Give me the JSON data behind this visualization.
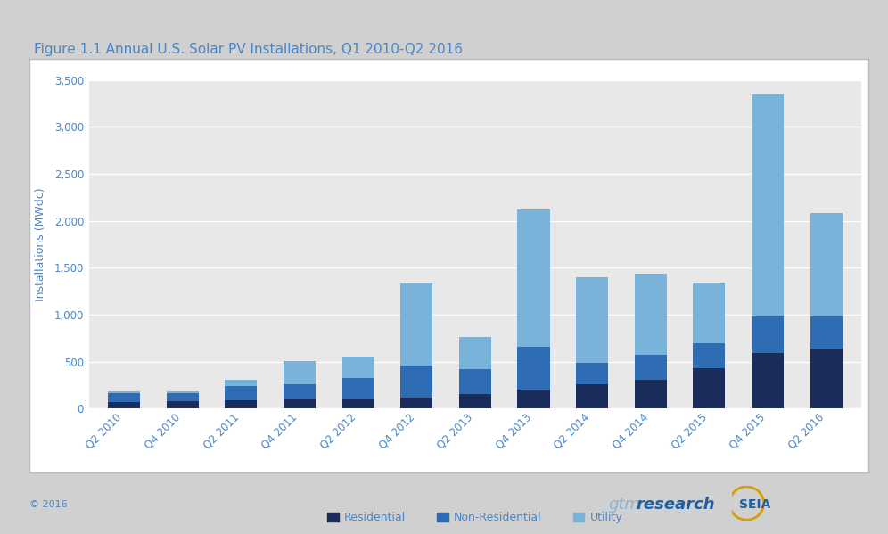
{
  "title": "Figure 1.1 Annual U.S. Solar PV Installations, Q1 2010-Q2 2016",
  "ylabel": "Installations (MWdc)",
  "categories": [
    "Q2 2010",
    "Q4 2010",
    "Q2 2011",
    "Q4 2011",
    "Q2 2012",
    "Q4 2012",
    "Q2 2013",
    "Q4 2013",
    "Q2 2014",
    "Q4 2014",
    "Q2 2015",
    "Q4 2015",
    "Q2 2016"
  ],
  "residential": [
    70,
    75,
    85,
    95,
    100,
    115,
    155,
    205,
    255,
    310,
    430,
    590,
    635
  ],
  "non_residential": [
    90,
    90,
    155,
    160,
    230,
    340,
    265,
    455,
    230,
    265,
    265,
    395,
    345
  ],
  "utility": [
    20,
    20,
    70,
    255,
    220,
    880,
    340,
    1460,
    910,
    860,
    645,
    2360,
    1100
  ],
  "color_residential": "#1a2d5a",
  "color_non_residential": "#2e6db4",
  "color_utility": "#7ab3d9",
  "plot_bg": "#e8e8e8",
  "outer_bg": "#d0d0d0",
  "frame_bg": "#ffffff",
  "ylim": [
    0,
    3500
  ],
  "yticks": [
    0,
    500,
    1000,
    1500,
    2000,
    2500,
    3000,
    3500
  ],
  "title_color": "#4a86c8",
  "tick_color": "#4a86c8",
  "legend_labels": [
    "Residential",
    "Non-Residential",
    "Utility"
  ],
  "footer_left": "© 2016",
  "footer_color": "#4a86c8",
  "gtm_color_light": "#8ab4d4",
  "gtm_color_dark": "#2060a0",
  "seia_color": "#2060a0"
}
